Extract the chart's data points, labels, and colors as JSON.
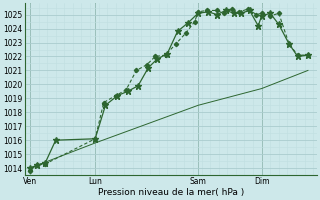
{
  "bg_color": "#cde8ea",
  "grid_color_major": "#aaccce",
  "grid_color_minor": "#c0dfe1",
  "line_color": "#2d6630",
  "xlabel": "Pression niveau de la mer( hPa )",
  "ylim": [
    1013.5,
    1025.8
  ],
  "xlim": [
    -0.3,
    16.7
  ],
  "yticks": [
    1014,
    1015,
    1016,
    1017,
    1018,
    1019,
    1020,
    1021,
    1022,
    1023,
    1024,
    1025
  ],
  "xtick_labels": [
    "Ven",
    "Lun",
    "Sam",
    "Dim"
  ],
  "xtick_positions": [
    0,
    3.8,
    9.8,
    13.5
  ],
  "vlines_x": [
    0,
    3.8,
    9.8,
    13.5
  ],
  "line1_x": [
    0,
    0.4,
    0.9,
    3.8,
    4.3,
    5.0,
    5.6,
    6.2,
    6.8,
    7.3,
    7.9,
    8.5,
    9.1,
    9.6,
    9.8,
    10.3,
    10.9,
    11.3,
    11.8,
    12.2,
    12.7,
    13.2,
    13.5,
    14.0,
    14.5,
    15.1,
    15.6,
    16.2
  ],
  "line1_y": [
    1013.8,
    1014.2,
    1014.3,
    1016.1,
    1018.7,
    1019.2,
    1019.6,
    1021.0,
    1021.4,
    1022.0,
    1022.1,
    1022.9,
    1023.7,
    1024.5,
    1025.2,
    1025.3,
    1025.3,
    1025.1,
    1025.4,
    1025.2,
    1025.4,
    1025.0,
    1025.1,
    1024.9,
    1025.1,
    1022.9,
    1022.1,
    1022.1
  ],
  "line2_x": [
    0,
    0.4,
    0.9,
    1.5,
    3.8,
    4.4,
    5.1,
    5.7,
    6.3,
    6.9,
    7.4,
    8.0,
    8.6,
    9.2,
    9.8,
    10.4,
    10.9,
    11.4,
    11.9,
    12.3,
    12.8,
    13.3,
    13.5,
    14.0,
    14.5,
    15.1,
    15.6,
    16.2
  ],
  "line2_y": [
    1014.0,
    1014.2,
    1014.4,
    1016.0,
    1016.1,
    1018.5,
    1019.2,
    1019.5,
    1019.9,
    1021.2,
    1021.8,
    1022.2,
    1023.8,
    1024.4,
    1025.1,
    1025.2,
    1025.0,
    1025.3,
    1025.1,
    1025.1,
    1025.3,
    1024.2,
    1024.9,
    1025.1,
    1024.3,
    1022.9,
    1022.0,
    1022.1
  ],
  "line3_x": [
    0,
    3.8,
    9.8,
    13.5,
    16.2
  ],
  "line3_y": [
    1014.0,
    1015.8,
    1018.5,
    1019.7,
    1021.0
  ]
}
